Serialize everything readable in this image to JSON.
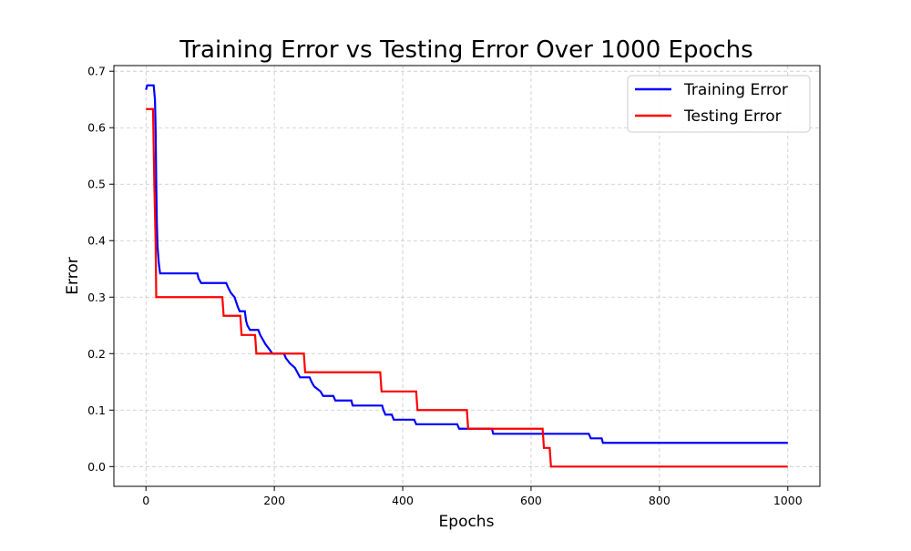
{
  "chart_data": {
    "type": "line",
    "title": "Training Error vs Testing Error Over 1000 Epochs",
    "xlabel": "Epochs",
    "ylabel": "Error",
    "xlim": [
      -50,
      1050
    ],
    "ylim": [
      -0.035,
      0.71
    ],
    "xticks": [
      0,
      200,
      400,
      600,
      800,
      1000
    ],
    "xtick_labels": [
      "0",
      "200",
      "400",
      "600",
      "800",
      "1000"
    ],
    "yticks": [
      0.0,
      0.1,
      0.2,
      0.3,
      0.4,
      0.5,
      0.6,
      0.7
    ],
    "ytick_labels": [
      "0.0",
      "0.1",
      "0.2",
      "0.3",
      "0.4",
      "0.5",
      "0.6",
      "0.7"
    ],
    "grid": true,
    "legend_position": "top-right",
    "series": [
      {
        "name": "Training Error",
        "color": "#0000ff",
        "step": true,
        "points": [
          [
            0,
            0.667
          ],
          [
            2,
            0.675
          ],
          [
            12,
            0.675
          ],
          [
            14,
            0.65
          ],
          [
            15,
            0.6
          ],
          [
            16,
            0.5
          ],
          [
            17,
            0.43
          ],
          [
            18,
            0.39
          ],
          [
            20,
            0.36
          ],
          [
            22,
            0.342
          ],
          [
            80,
            0.342
          ],
          [
            82,
            0.333
          ],
          [
            86,
            0.325
          ],
          [
            125,
            0.325
          ],
          [
            128,
            0.317
          ],
          [
            132,
            0.308
          ],
          [
            138,
            0.3
          ],
          [
            143,
            0.283
          ],
          [
            146,
            0.275
          ],
          [
            154,
            0.275
          ],
          [
            156,
            0.258
          ],
          [
            158,
            0.25
          ],
          [
            162,
            0.242
          ],
          [
            175,
            0.242
          ],
          [
            178,
            0.233
          ],
          [
            182,
            0.225
          ],
          [
            186,
            0.217
          ],
          [
            192,
            0.208
          ],
          [
            197,
            0.2
          ],
          [
            215,
            0.2
          ],
          [
            218,
            0.192
          ],
          [
            224,
            0.183
          ],
          [
            232,
            0.175
          ],
          [
            240,
            0.158
          ],
          [
            255,
            0.158
          ],
          [
            258,
            0.15
          ],
          [
            262,
            0.142
          ],
          [
            272,
            0.133
          ],
          [
            276,
            0.125
          ],
          [
            292,
            0.125
          ],
          [
            295,
            0.117
          ],
          [
            320,
            0.117
          ],
          [
            322,
            0.108
          ],
          [
            368,
            0.108
          ],
          [
            370,
            0.1
          ],
          [
            373,
            0.092
          ],
          [
            383,
            0.092
          ],
          [
            386,
            0.083
          ],
          [
            418,
            0.083
          ],
          [
            421,
            0.075
          ],
          [
            485,
            0.075
          ],
          [
            488,
            0.067
          ],
          [
            539,
            0.067
          ],
          [
            541,
            0.058
          ],
          [
            690,
            0.058
          ],
          [
            693,
            0.05
          ],
          [
            710,
            0.05
          ],
          [
            712,
            0.042
          ],
          [
            1000,
            0.042
          ]
        ]
      },
      {
        "name": "Testing Error",
        "color": "#ff0000",
        "step": true,
        "points": [
          [
            0,
            0.633
          ],
          [
            11,
            0.633
          ],
          [
            13,
            0.5
          ],
          [
            15,
            0.4
          ],
          [
            16,
            0.3
          ],
          [
            18,
            0.3
          ],
          [
            119,
            0.3
          ],
          [
            121,
            0.267
          ],
          [
            147,
            0.267
          ],
          [
            149,
            0.233
          ],
          [
            170,
            0.233
          ],
          [
            172,
            0.2
          ],
          [
            246,
            0.2
          ],
          [
            248,
            0.167
          ],
          [
            365,
            0.167
          ],
          [
            367,
            0.133
          ],
          [
            421,
            0.133
          ],
          [
            423,
            0.1
          ],
          [
            500,
            0.1
          ],
          [
            502,
            0.067
          ],
          [
            618,
            0.067
          ],
          [
            620,
            0.033
          ],
          [
            629,
            0.033
          ],
          [
            631,
            0.0
          ],
          [
            1000,
            0.0
          ]
        ]
      }
    ]
  }
}
